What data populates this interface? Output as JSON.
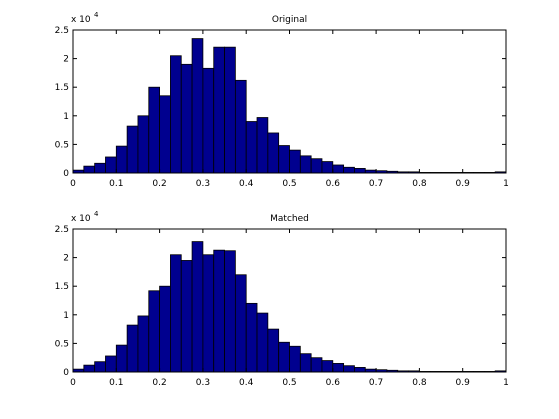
{
  "chart_data": [
    {
      "type": "histogram",
      "title": "Original",
      "y_exponent_base": "x 10",
      "y_exponent_power": "4",
      "color": "#00008f",
      "bins": [
        0,
        0.025,
        0.05,
        0.075,
        0.1,
        0.125,
        0.15,
        0.175,
        0.2,
        0.225,
        0.25,
        0.275,
        0.3,
        0.325,
        0.35,
        0.375,
        0.4,
        0.425,
        0.45,
        0.475,
        0.5,
        0.525,
        0.55,
        0.575,
        0.6,
        0.625,
        0.65,
        0.675,
        0.7,
        0.725,
        0.75,
        0.775,
        0.8,
        0.825,
        0.85,
        0.875,
        0.9,
        0.925,
        0.95,
        0.975,
        1
      ],
      "values": [
        0.05,
        0.12,
        0.17,
        0.28,
        0.47,
        0.82,
        1.0,
        1.5,
        1.35,
        2.05,
        1.9,
        2.35,
        1.83,
        2.2,
        2.2,
        1.62,
        0.9,
        0.97,
        0.7,
        0.48,
        0.4,
        0.3,
        0.25,
        0.2,
        0.14,
        0.1,
        0.08,
        0.05,
        0.04,
        0.03,
        0.02,
        0.02,
        0.01,
        0.01,
        0.01,
        0.01,
        0.01,
        0.01,
        0.01,
        0.02
      ],
      "xlim": [
        0,
        1
      ],
      "xticks": [
        0,
        0.1,
        0.2,
        0.3,
        0.4,
        0.5,
        0.6,
        0.7,
        0.8,
        0.9,
        1
      ],
      "ylim": [
        0,
        2.5
      ],
      "yticks": [
        0,
        0.5,
        1,
        1.5,
        2,
        2.5
      ]
    },
    {
      "type": "histogram",
      "title": "Matched",
      "y_exponent_base": "x 10",
      "y_exponent_power": "4",
      "color": "#00008f",
      "bins": [
        0,
        0.025,
        0.05,
        0.075,
        0.1,
        0.125,
        0.15,
        0.175,
        0.2,
        0.225,
        0.25,
        0.275,
        0.3,
        0.325,
        0.35,
        0.375,
        0.4,
        0.425,
        0.45,
        0.475,
        0.5,
        0.525,
        0.55,
        0.575,
        0.6,
        0.625,
        0.65,
        0.675,
        0.7,
        0.725,
        0.75,
        0.775,
        0.8,
        0.825,
        0.85,
        0.875,
        0.9,
        0.925,
        0.95,
        0.975,
        1
      ],
      "values": [
        0.05,
        0.12,
        0.18,
        0.28,
        0.47,
        0.82,
        0.98,
        1.42,
        1.5,
        2.05,
        1.95,
        2.28,
        2.05,
        2.13,
        2.12,
        1.7,
        1.2,
        1.03,
        0.75,
        0.52,
        0.45,
        0.32,
        0.25,
        0.2,
        0.15,
        0.11,
        0.08,
        0.05,
        0.04,
        0.03,
        0.02,
        0.02,
        0.01,
        0.01,
        0.01,
        0.01,
        0.01,
        0.01,
        0.01,
        0.02
      ],
      "xlim": [
        0,
        1
      ],
      "xticks": [
        0,
        0.1,
        0.2,
        0.3,
        0.4,
        0.5,
        0.6,
        0.7,
        0.8,
        0.9,
        1
      ],
      "ylim": [
        0,
        2.5
      ],
      "yticks": [
        0,
        0.5,
        1,
        1.5,
        2,
        2.5
      ]
    }
  ]
}
